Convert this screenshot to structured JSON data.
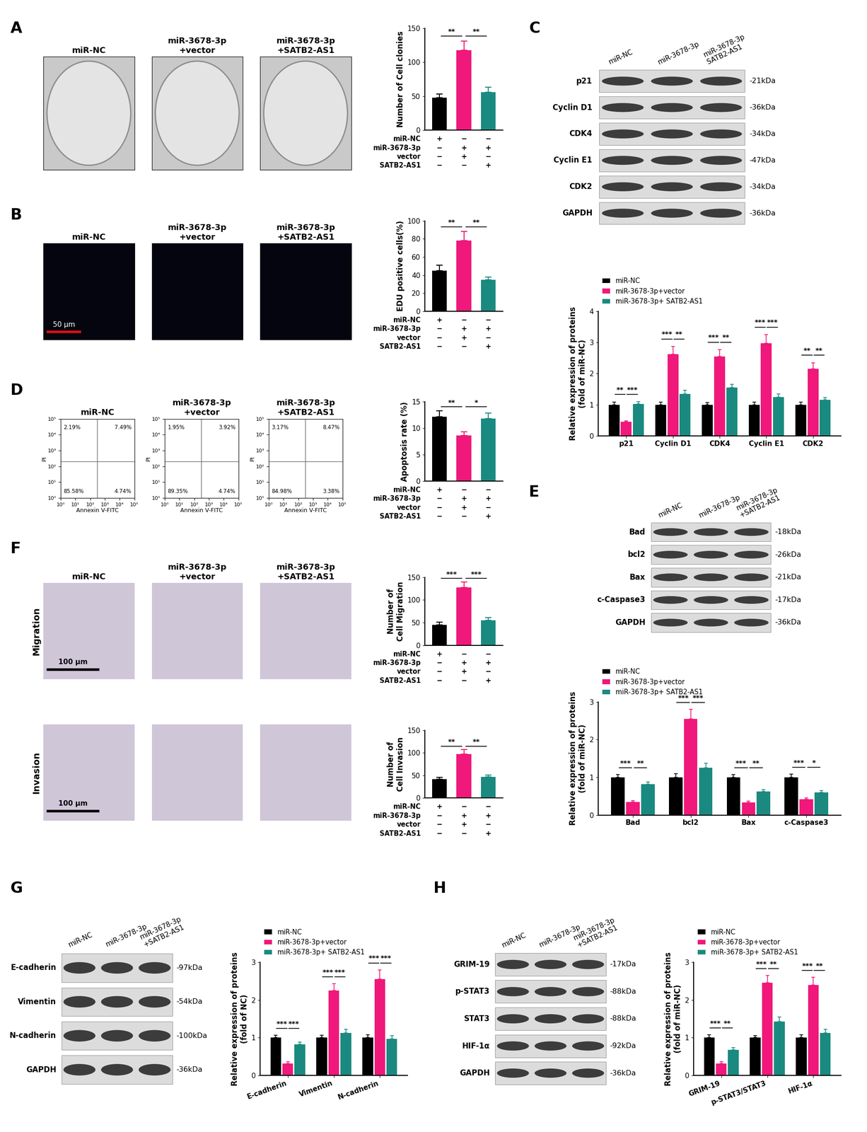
{
  "panel_labels": [
    "A",
    "B",
    "C",
    "D",
    "E",
    "F",
    "G",
    "H"
  ],
  "image_panels": [
    {
      "titles": [
        "miR-NC",
        "miR-3678-3p\n+vector",
        "miR-3678-3p\n+SATB2-AS1"
      ]
    },
    {
      "titles": [
        "miR-NC",
        "miR-3678-3p\n+vector",
        "miR-3678-3p\n+SATB2-AS1"
      ],
      "scale_bar": "50 μm"
    },
    {
      "titles": [
        "miR-NC",
        "miR-3678-3p\n+vector",
        "miR-3678-3p\n+SATB2-AS1"
      ],
      "row_labels": [
        "Migration",
        "Invasion"
      ],
      "scale_bar": "100 μm"
    }
  ],
  "flow": {
    "x_label": "Annexin V-FITC",
    "y_label": "PI",
    "xlim": [
      1,
      100000
    ],
    "ylim": [
      1,
      100000
    ],
    "xticks": [
      {
        "value": 1,
        "label": "10⁰"
      },
      {
        "value": 10,
        "label": "10¹"
      },
      {
        "value": 100,
        "label": "10²"
      },
      {
        "value": 1000,
        "label": "10³"
      },
      {
        "value": 10000,
        "label": "10⁴"
      },
      {
        "value": 100000,
        "label": "10⁵"
      }
    ],
    "yticks": [
      {
        "value": 1,
        "label": "10⁰"
      },
      {
        "value": 10,
        "label": "10¹"
      },
      {
        "value": 100,
        "label": "10²"
      },
      {
        "value": 1000,
        "label": "10³"
      },
      {
        "value": 10000,
        "label": "10⁴"
      },
      {
        "value": 100000,
        "label": "10⁵"
      }
    ],
    "gate": {
      "x": 300,
      "y": 200
    },
    "plots": [
      {
        "title": "miR-NC",
        "quadrants": [
          {
            "value": 2.19,
            "label": "2.19%"
          },
          {
            "value": 7.49,
            "label": "7.49%"
          },
          {
            "value": 85.58,
            "label": "85.58%"
          },
          {
            "value": 4.74,
            "label": "4.74%"
          }
        ]
      },
      {
        "title": "miR-3678-3p\n+vector",
        "quadrants": [
          {
            "value": 1.95,
            "label": "1.95%"
          },
          {
            "value": 3.92,
            "label": "3.92%"
          },
          {
            "value": 89.35,
            "label": "89.35%"
          },
          {
            "value": 4.74,
            "label": "4.74%"
          }
        ]
      },
      {
        "title": "miR-3678-3p\n+SATB2-AS1",
        "quadrants": [
          {
            "value": 3.17,
            "label": "3.17%"
          },
          {
            "value": 8.47,
            "label": "8.47%"
          },
          {
            "value": 84.98,
            "label": "84.98%"
          },
          {
            "value": 3.38,
            "label": "3.38%"
          }
        ]
      }
    ]
  },
  "blots": [
    {
      "lanes": [
        "miR-NC",
        "miR-3678-3p",
        "miR-3678-3p\nSATB2-AS1"
      ],
      "rows": [
        {
          "name": "p21",
          "size": "-21kDa"
        },
        {
          "name": "Cyclin D1",
          "size": "-36kDa"
        },
        {
          "name": "CDK4",
          "size": "-34kDa"
        },
        {
          "name": "Cyclin E1",
          "size": "-47kDa"
        },
        {
          "name": "CDK2",
          "size": "-34kDa"
        },
        {
          "name": "GAPDH",
          "size": "-36kDa"
        }
      ]
    },
    {
      "lanes": [
        "miR-NC",
        "miR-3678-3p",
        "miR-3678-3p\n+SATB2-AS1"
      ],
      "rows": [
        {
          "name": "Bad",
          "size": "-18kDa"
        },
        {
          "name": "bcl2",
          "size": "-26kDa"
        },
        {
          "name": "Bax",
          "size": "-21kDa"
        },
        {
          "name": "c-Caspase3",
          "size": "-17kDa"
        },
        {
          "name": "GAPDH",
          "size": "-36kDa"
        }
      ]
    },
    {
      "lanes": [
        "miR-NC",
        "miR-3678-3p",
        "miR-3678-3p\n+SATB2-AS1"
      ],
      "rows": [
        {
          "name": "E-cadherin",
          "size": "-97kDa"
        },
        {
          "name": "Vimentin",
          "size": "-54kDa"
        },
        {
          "name": "N-cadherin",
          "size": "-100kDa"
        },
        {
          "name": "GAPDH",
          "size": "-36kDa"
        }
      ]
    },
    {
      "lanes": [
        "miR-NC",
        "miR-3678-3p",
        "miR-3678-3p\n+SATB2-AS1"
      ],
      "rows": [
        {
          "name": "GRIM-19",
          "size": "-17kDa"
        },
        {
          "name": "p-STAT3",
          "size": "-88kDa"
        },
        {
          "name": "STAT3",
          "size": "-88kDa"
        },
        {
          "name": "HIF-1α",
          "size": "-92kDa"
        },
        {
          "name": "GAPDH",
          "size": "-36kDa"
        }
      ]
    }
  ],
  "chart_data": [
    {
      "type": "bar",
      "y_label": "Number of Cell clonies",
      "values": [
        48,
        118,
        56
      ],
      "errors": [
        5,
        13,
        7
      ],
      "colors": [
        "#000000",
        "#f0187a",
        "#1a8a80"
      ],
      "ylim": [
        0,
        150
      ],
      "yticks": [
        0,
        50,
        100,
        150
      ],
      "significance": [
        "**",
        "**"
      ],
      "conditions": {
        "rows": [
          "miR-NC",
          "miR-3678-3p",
          "vector",
          "SATB2-AS1"
        ],
        "marks": [
          [
            "+",
            "−",
            "−"
          ],
          [
            "−",
            "+",
            "+"
          ],
          [
            "−",
            "+",
            "−"
          ],
          [
            "−",
            "−",
            "+"
          ]
        ]
      }
    },
    {
      "type": "bar",
      "y_label": "EDU positive cells(%)",
      "values": [
        45,
        78,
        35
      ],
      "errors": [
        6,
        10,
        3
      ],
      "colors": [
        "#000000",
        "#f0187a",
        "#1a8a80"
      ],
      "ylim": [
        0,
        100
      ],
      "yticks": [
        0,
        20,
        40,
        60,
        80,
        100
      ],
      "significance": [
        "**",
        "**"
      ],
      "conditions": {
        "rows": [
          "miR-NC",
          "miR-3678-3p",
          "vector",
          "SATB2-AS1"
        ],
        "marks": [
          [
            "+",
            "−",
            "−"
          ],
          [
            "−",
            "+",
            "+"
          ],
          [
            "−",
            "+",
            "−"
          ],
          [
            "−",
            "−",
            "+"
          ]
        ]
      }
    },
    {
      "type": "bar",
      "y_label": "Apoptosis rate (%)",
      "values": [
        12.2,
        8.6,
        11.8
      ],
      "errors": [
        1.1,
        0.7,
        1.1
      ],
      "colors": [
        "#000000",
        "#f0187a",
        "#1a8a80"
      ],
      "ylim": [
        0,
        15
      ],
      "yticks": [
        0,
        5,
        10,
        15
      ],
      "significance": [
        "**",
        "*"
      ],
      "conditions": {
        "rows": [
          "miR-NC",
          "miR-3678-3p",
          "vector",
          "SATB2-AS1"
        ],
        "marks": [
          [
            "+",
            "−",
            "−"
          ],
          [
            "−",
            "+",
            "+"
          ],
          [
            "−",
            "+",
            "−"
          ],
          [
            "−",
            "−",
            "+"
          ]
        ]
      }
    },
    {
      "type": "bar",
      "y_label": "Number of\nCell Migration",
      "values": [
        45,
        128,
        55
      ],
      "errors": [
        6,
        12,
        6
      ],
      "colors": [
        "#000000",
        "#f0187a",
        "#1a8a80"
      ],
      "ylim": [
        0,
        150
      ],
      "yticks": [
        0,
        50,
        100,
        150
      ],
      "significance": [
        "***",
        "***"
      ],
      "conditions": {
        "rows": [
          "miR-NC",
          "miR-3678-3p",
          "vector",
          "SATB2-AS1"
        ],
        "marks": [
          [
            "+",
            "−",
            "−"
          ],
          [
            "−",
            "+",
            "+"
          ],
          [
            "−",
            "+",
            "−"
          ],
          [
            "−",
            "−",
            "+"
          ]
        ]
      }
    },
    {
      "type": "bar",
      "y_label": "Number of\nCell Invasion",
      "values": [
        42,
        97,
        47
      ],
      "errors": [
        4,
        10,
        4
      ],
      "colors": [
        "#000000",
        "#f0187a",
        "#1a8a80"
      ],
      "ylim": [
        0,
        150
      ],
      "yticks": [
        0,
        50,
        100,
        150
      ],
      "significance": [
        "**",
        "**"
      ],
      "conditions": {
        "rows": [
          "miR-NC",
          "miR-3678-3p",
          "vector",
          "SATB2-AS1"
        ],
        "marks": [
          [
            "+",
            "−",
            "−"
          ],
          [
            "−",
            "+",
            "+"
          ],
          [
            "−",
            "+",
            "−"
          ],
          [
            "−",
            "−",
            "+"
          ]
        ]
      }
    },
    {
      "type": "bar",
      "y_label": "Relative expression of proteins\n(fold of miR-NC)",
      "legend": "upper left",
      "categories": [
        "p21",
        "Cyclin D1",
        "CDK4",
        "Cyclin E1",
        "CDK2"
      ],
      "series": [
        {
          "name": "miR-NC",
          "color": "#000000",
          "values": [
            1,
            1,
            1,
            1,
            1
          ],
          "errors": [
            0.08,
            0.08,
            0.07,
            0.08,
            0.08
          ]
        },
        {
          "name": "miR-3678-3p+vector",
          "color": "#f0187a",
          "values": [
            0.45,
            2.62,
            2.55,
            2.97,
            2.15
          ],
          "errors": [
            0.03,
            0.25,
            0.22,
            0.28,
            0.2
          ]
        },
        {
          "name": "miR-3678-3p+ SATB2-AS1",
          "color": "#1a8a80",
          "values": [
            1.03,
            1.35,
            1.55,
            1.25,
            1.15
          ],
          "errors": [
            0.06,
            0.12,
            0.1,
            0.1,
            0.08
          ]
        }
      ],
      "ylim": [
        0,
        4
      ],
      "yticks": [
        0,
        1,
        2,
        3,
        4
      ],
      "significance": [
        [
          "**",
          "***"
        ],
        [
          "***",
          "**"
        ],
        [
          "***",
          "**"
        ],
        [
          "***",
          "***"
        ],
        [
          "**",
          "**"
        ]
      ]
    },
    {
      "type": "bar",
      "y_label": "Relative expression of proteins\n(fold of miR-NC)",
      "legend": "upper left",
      "categories": [
        "Bad",
        "bcl2",
        "Bax",
        "c-Caspase3"
      ],
      "series": [
        {
          "name": "miR-NC",
          "color": "#000000",
          "values": [
            1,
            1,
            1,
            1
          ],
          "errors": [
            0.07,
            0.1,
            0.07,
            0.08
          ]
        },
        {
          "name": "miR-3678-3p+vector",
          "color": "#f0187a",
          "values": [
            0.35,
            2.55,
            0.33,
            0.42
          ],
          "errors": [
            0.03,
            0.25,
            0.04,
            0.04
          ]
        },
        {
          "name": "miR-3678-3p+ SATB2-AS1",
          "color": "#1a8a80",
          "values": [
            0.82,
            1.25,
            0.62,
            0.6
          ],
          "errors": [
            0.06,
            0.12,
            0.05,
            0.05
          ]
        }
      ],
      "ylim": [
        0,
        3
      ],
      "yticks": [
        0,
        1,
        2,
        3
      ],
      "significance": [
        [
          "***",
          "**"
        ],
        [
          "***",
          "***"
        ],
        [
          "***",
          "**"
        ],
        [
          "***",
          "*"
        ]
      ]
    },
    {
      "type": "bar",
      "y_label": "Relative expression of proteins\n(fold of NC)",
      "legend": "upper left",
      "categories": [
        "E-cadherin",
        "Vimentin",
        "N-cadherin"
      ],
      "series": [
        {
          "name": "miR-NC",
          "color": "#000000",
          "values": [
            1,
            1,
            1
          ],
          "errors": [
            0.06,
            0.06,
            0.08
          ]
        },
        {
          "name": "miR-3678-3p+vector",
          "color": "#f0187a",
          "values": [
            0.32,
            2.25,
            2.55
          ],
          "errors": [
            0.04,
            0.18,
            0.25
          ]
        },
        {
          "name": "miR-3678-3p+ SATB2-AS1",
          "color": "#1a8a80",
          "values": [
            0.82,
            1.12,
            0.97
          ],
          "errors": [
            0.06,
            0.1,
            0.08
          ]
        }
      ],
      "ylim": [
        0,
        3
      ],
      "yticks": [
        0,
        1,
        2,
        3
      ],
      "significance": [
        [
          "***",
          "***"
        ],
        [
          "***",
          "***"
        ],
        [
          "***",
          "***"
        ]
      ]
    },
    {
      "type": "bar",
      "y_label": "Relative expression of proteins\n(fold of miR-NC)",
      "legend": "upper left",
      "categories": [
        "GRIM-19",
        "p-STAT3/STAT3",
        "HIF-1α"
      ],
      "series": [
        {
          "name": "miR-NC",
          "color": "#000000",
          "values": [
            1,
            1,
            1
          ],
          "errors": [
            0.08,
            0.05,
            0.08
          ]
        },
        {
          "name": "miR-3678-3p+vector",
          "color": "#f0187a",
          "values": [
            0.32,
            2.45,
            2.4
          ],
          "errors": [
            0.04,
            0.2,
            0.2
          ]
        },
        {
          "name": "miR-3678-3p+ SATB2-AS1",
          "color": "#1a8a80",
          "values": [
            0.68,
            1.43,
            1.12
          ],
          "errors": [
            0.06,
            0.12,
            0.1
          ]
        }
      ],
      "ylim": [
        0,
        3
      ],
      "yticks": [
        0,
        1,
        2,
        3
      ],
      "significance": [
        [
          "***",
          "**"
        ],
        [
          "***",
          "**"
        ],
        [
          "***",
          "**"
        ]
      ]
    }
  ]
}
